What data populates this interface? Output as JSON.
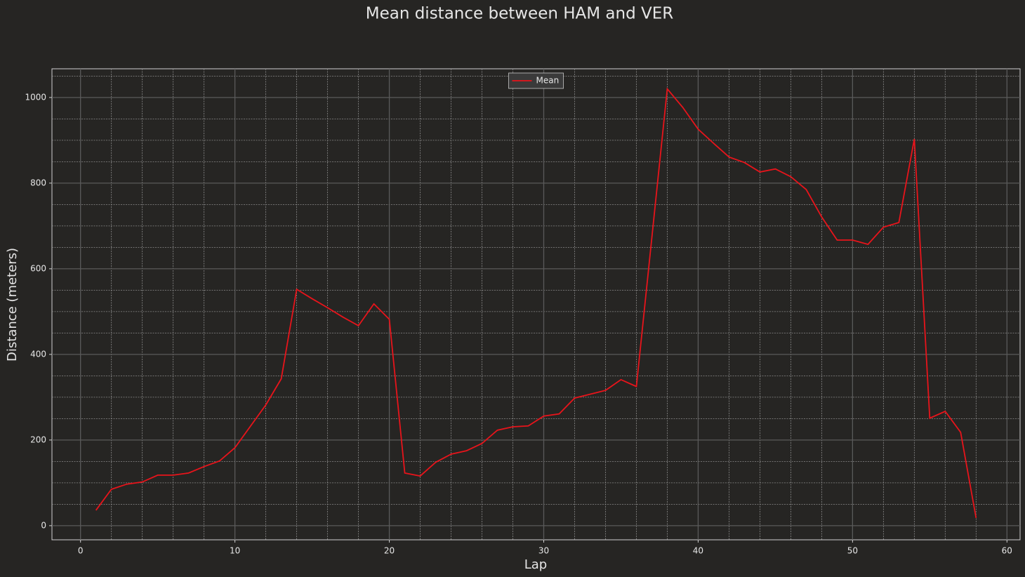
{
  "chart_data": {
    "type": "line",
    "title": "Mean distance between HAM and VER",
    "x_label": "Lap",
    "y_label": "Distance (meters)",
    "x": [
      1,
      2,
      3,
      4,
      5,
      6,
      7,
      8,
      9,
      10,
      11,
      12,
      13,
      14,
      15,
      16,
      17,
      18,
      19,
      20,
      21,
      22,
      23,
      24,
      25,
      26,
      27,
      28,
      29,
      30,
      31,
      32,
      33,
      34,
      35,
      36,
      37,
      38,
      39,
      40,
      41,
      42,
      43,
      44,
      45,
      46,
      47,
      48,
      49,
      50,
      51,
      52,
      53,
      54,
      55,
      56,
      57,
      58
    ],
    "series": [
      {
        "name": "Mean",
        "color": "#e8141b",
        "values": [
          36,
          85,
          97,
          102,
          118,
          118,
          123,
          138,
          151,
          182,
          232,
          282,
          343,
          552,
          530,
          509,
          487,
          467,
          518,
          482,
          123,
          116,
          148,
          167,
          175,
          192,
          223,
          231,
          233,
          256,
          261,
          298,
          307,
          316,
          341,
          325,
          672,
          1020,
          977,
          926,
          893,
          861,
          848,
          826,
          833,
          815,
          785,
          721,
          667,
          667,
          657,
          697,
          708,
          903,
          251,
          267,
          218,
          18
        ]
      }
    ],
    "xlim": [
      -1.85,
      60.85
    ],
    "ylim": [
      -33,
      1067
    ],
    "xticks": [
      0,
      10,
      20,
      30,
      40,
      50,
      60
    ],
    "yticks": [
      0,
      200,
      400,
      600,
      800,
      1000
    ],
    "xminorticks": [
      2,
      4,
      6,
      8,
      12,
      14,
      16,
      18,
      22,
      24,
      26,
      28,
      32,
      34,
      36,
      38,
      42,
      44,
      46,
      48,
      52,
      54,
      56,
      58
    ],
    "yminorticks": [
      50,
      100,
      150,
      250,
      300,
      350,
      450,
      500,
      550,
      650,
      700,
      750,
      850,
      900,
      950,
      1050
    ],
    "grid": true,
    "legend": "upper center"
  }
}
